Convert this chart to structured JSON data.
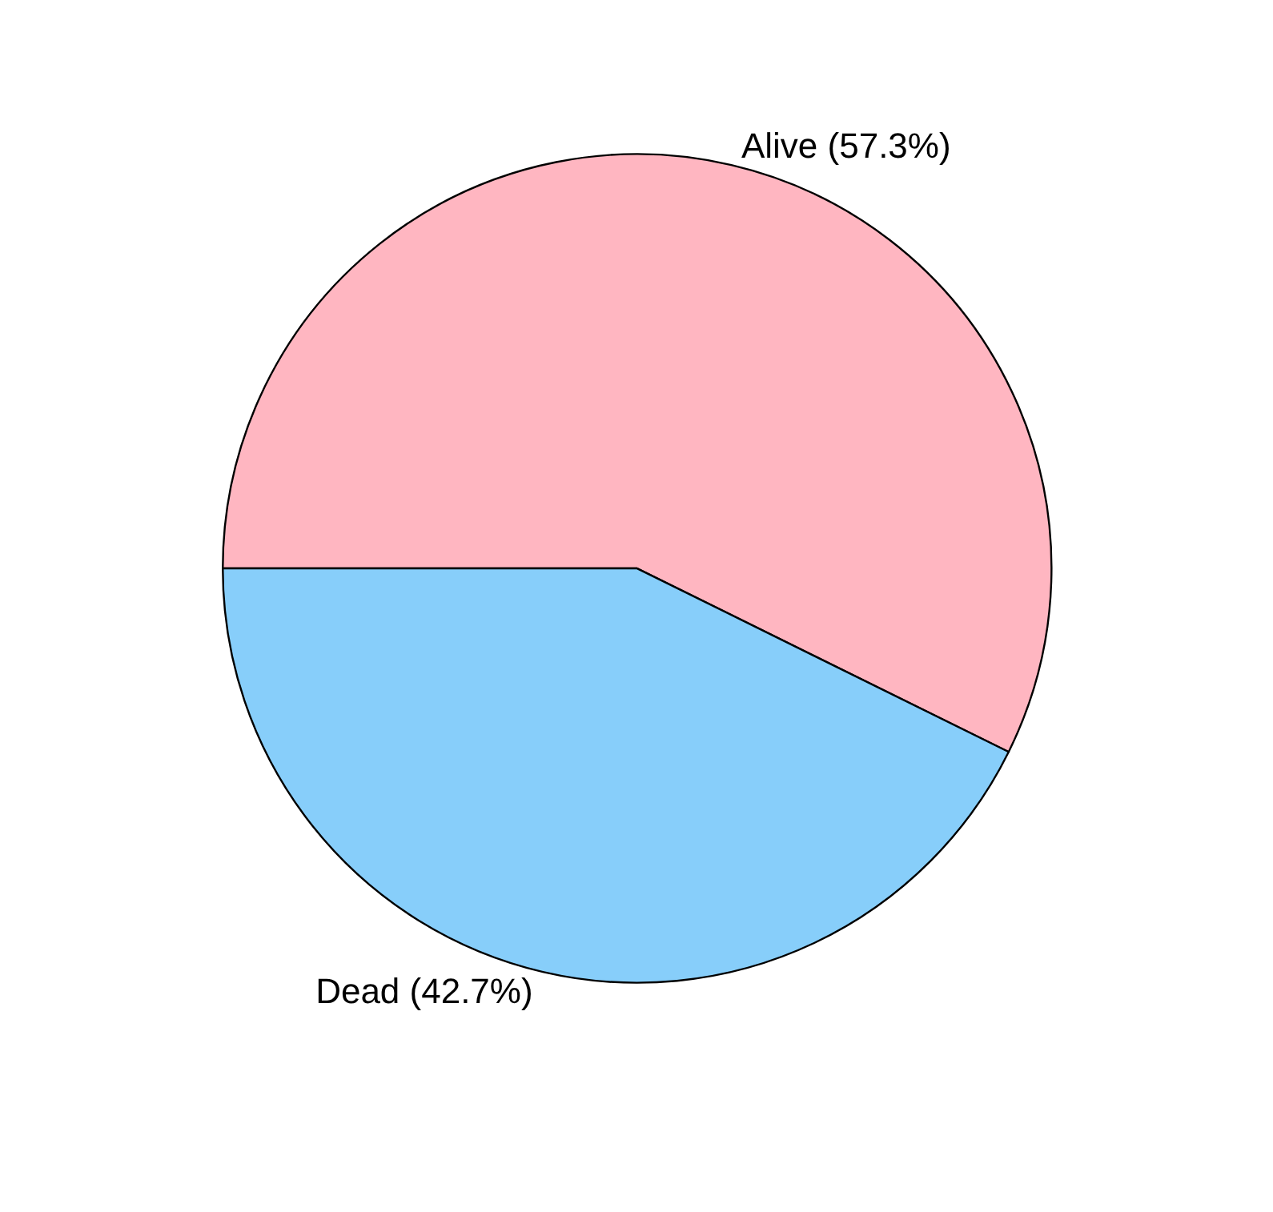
{
  "chart_data": {
    "type": "pie",
    "categories": [
      "Alive",
      "Dead"
    ],
    "values": [
      57.3,
      42.7
    ],
    "colors": [
      "#ffb6c1",
      "#87cefa"
    ],
    "value_labels": [
      "(57.3%)",
      "(42.7%)"
    ],
    "legend": false
  }
}
